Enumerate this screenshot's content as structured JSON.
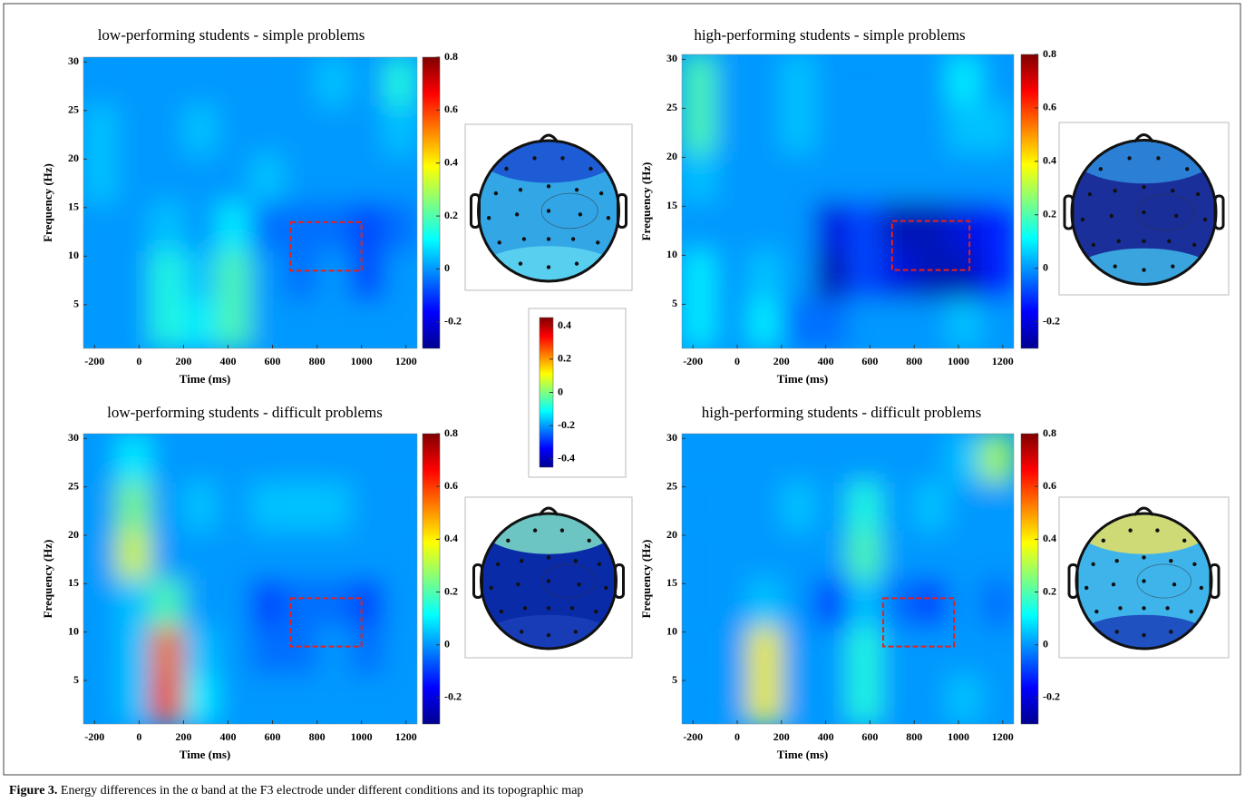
{
  "chart_data": [
    {
      "type": "heatmap",
      "title": "low-performing students - simple problems",
      "xlabel": "Time (ms)",
      "ylabel": "Frequency (Hz)",
      "x": [
        -175,
        -25,
        125,
        275,
        425,
        575,
        725,
        875,
        1025,
        1175
      ],
      "y": [
        3,
        8,
        13,
        18,
        23,
        28
      ],
      "z": [
        [
          0,
          0,
          0.15,
          0.1,
          0.2,
          0,
          0,
          0,
          0,
          0
        ],
        [
          0,
          0,
          0.15,
          0.05,
          0.2,
          0,
          -0.05,
          0,
          -0.1,
          0
        ],
        [
          0,
          0,
          0.05,
          0,
          0.1,
          -0.05,
          -0.05,
          -0.05,
          -0.1,
          -0.05
        ],
        [
          0.05,
          0,
          0,
          0,
          0,
          0.05,
          0,
          0,
          0,
          0
        ],
        [
          0.05,
          0,
          0,
          0.05,
          0,
          0,
          0,
          0,
          0,
          0.05
        ],
        [
          0,
          0,
          0,
          0,
          0,
          0,
          0,
          0.05,
          0,
          0.15
        ]
      ],
      "xlim": [
        -250,
        1250
      ],
      "ylim": [
        0.5,
        30.5
      ],
      "xticks": [
        -200,
        0,
        200,
        400,
        600,
        800,
        1000,
        1200
      ],
      "yticks": [
        5,
        10,
        15,
        20,
        25,
        30
      ],
      "clim": [
        -0.3,
        0.8
      ],
      "cticks": [
        -0.2,
        0,
        0.2,
        0.4,
        0.6,
        0.8
      ],
      "roi": {
        "x": [
          680,
          1000
        ],
        "y": [
          8.5,
          13.5
        ]
      }
    },
    {
      "type": "heatmap",
      "title": "high-performing students - simple problems",
      "xlabel": "Time (ms)",
      "ylabel": "Frequency (Hz)",
      "x": [
        -175,
        -25,
        125,
        275,
        425,
        575,
        725,
        875,
        1025,
        1175
      ],
      "y": [
        3,
        8,
        13,
        18,
        23,
        28
      ],
      "z": [
        [
          0.1,
          0,
          0.1,
          -0.05,
          -0.05,
          0,
          0,
          0,
          0.05,
          0
        ],
        [
          0.1,
          0,
          0.05,
          0,
          -0.25,
          -0.1,
          -0.2,
          -0.25,
          -0.25,
          -0.15
        ],
        [
          0,
          0,
          0,
          0,
          -0.2,
          -0.1,
          -0.25,
          -0.25,
          -0.2,
          -0.15
        ],
        [
          0.05,
          0,
          0,
          0,
          0,
          0,
          0,
          0,
          0,
          0
        ],
        [
          0.2,
          0,
          0,
          0.05,
          0,
          0,
          0,
          0,
          0.05,
          0.05
        ],
        [
          0.2,
          0,
          0,
          0.05,
          0,
          0,
          0,
          0,
          0.1,
          0
        ]
      ],
      "xlim": [
        -250,
        1250
      ],
      "ylim": [
        0.5,
        30.5
      ],
      "xticks": [
        -200,
        0,
        200,
        400,
        600,
        800,
        1000,
        1200
      ],
      "yticks": [
        5,
        10,
        15,
        20,
        25,
        30
      ],
      "clim": [
        -0.3,
        0.8
      ],
      "cticks": [
        -0.2,
        0,
        0.2,
        0.4,
        0.6,
        0.8
      ],
      "roi": {
        "x": [
          700,
          1050
        ],
        "y": [
          8.5,
          13.5
        ]
      }
    },
    {
      "type": "heatmap",
      "title": "low-performing students - difficult problems",
      "xlabel": "Time (ms)",
      "ylabel": "Frequency (Hz)",
      "x": [
        -175,
        -25,
        125,
        275,
        425,
        575,
        725,
        875,
        1025,
        1175
      ],
      "y": [
        3,
        8,
        13,
        18,
        23,
        28
      ],
      "z": [
        [
          0,
          0.05,
          0.6,
          0.1,
          0,
          0,
          0,
          0,
          0,
          0
        ],
        [
          0,
          0.05,
          0.55,
          0.05,
          0,
          -0.05,
          -0.05,
          0,
          -0.05,
          0
        ],
        [
          0,
          0.05,
          0.2,
          0,
          0,
          -0.1,
          -0.05,
          -0.05,
          -0.1,
          0
        ],
        [
          0,
          0.35,
          0,
          0,
          0,
          0,
          0,
          0,
          0,
          0
        ],
        [
          0,
          0.25,
          0,
          0.05,
          0,
          0.05,
          0.05,
          0.05,
          0,
          0
        ],
        [
          0,
          0.1,
          0,
          0,
          0,
          0,
          0,
          0,
          0,
          0
        ]
      ],
      "xlim": [
        -250,
        1250
      ],
      "ylim": [
        0.5,
        30.5
      ],
      "xticks": [
        -200,
        0,
        200,
        400,
        600,
        800,
        1000,
        1200
      ],
      "yticks": [
        5,
        10,
        15,
        20,
        25,
        30
      ],
      "clim": [
        -0.3,
        0.8
      ],
      "cticks": [
        -0.2,
        0,
        0.2,
        0.4,
        0.6,
        0.8
      ],
      "roi": {
        "x": [
          680,
          1000
        ],
        "y": [
          8.5,
          13.5
        ]
      }
    },
    {
      "type": "heatmap",
      "title": "high-performing students - difficult problems",
      "xlabel": "Time (ms)",
      "ylabel": "Frequency (Hz)",
      "x": [
        -175,
        -25,
        125,
        275,
        425,
        575,
        725,
        875,
        1025,
        1175
      ],
      "y": [
        3,
        8,
        13,
        18,
        23,
        28
      ],
      "z": [
        [
          0,
          0,
          0.4,
          0,
          0,
          0.15,
          0,
          0,
          0.05,
          0
        ],
        [
          0,
          0,
          0.4,
          0,
          0,
          0.15,
          0,
          0,
          0,
          0
        ],
        [
          0,
          0,
          0.05,
          0,
          -0.1,
          0.05,
          -0.05,
          -0.1,
          0,
          -0.05
        ],
        [
          0,
          0,
          0,
          0,
          0,
          0.2,
          0,
          0,
          0,
          0
        ],
        [
          0,
          0,
          0,
          0.05,
          0,
          0.15,
          0,
          0.05,
          0,
          0
        ],
        [
          0,
          0,
          0,
          0,
          0,
          0,
          0,
          0,
          0.05,
          0.3
        ]
      ],
      "xlim": [
        -250,
        1250
      ],
      "ylim": [
        0.5,
        30.5
      ],
      "xticks": [
        -200,
        0,
        200,
        400,
        600,
        800,
        1000,
        1200
      ],
      "yticks": [
        5,
        10,
        15,
        20,
        25,
        30
      ],
      "clim": [
        -0.3,
        0.8
      ],
      "cticks": [
        -0.2,
        0,
        0.2,
        0.4,
        0.6,
        0.8
      ],
      "roi": {
        "x": [
          660,
          980
        ],
        "y": [
          8.5,
          13.5
        ]
      }
    }
  ],
  "topo_colorbar": {
    "clim": [
      -0.45,
      0.45
    ],
    "cticks": [
      -0.4,
      -0.2,
      0,
      0.2,
      0.4
    ]
  },
  "caption": {
    "label": "Figure 3.",
    "text": "Energy differences in the α band at the F3 electrode under different conditions and its topographic map"
  }
}
